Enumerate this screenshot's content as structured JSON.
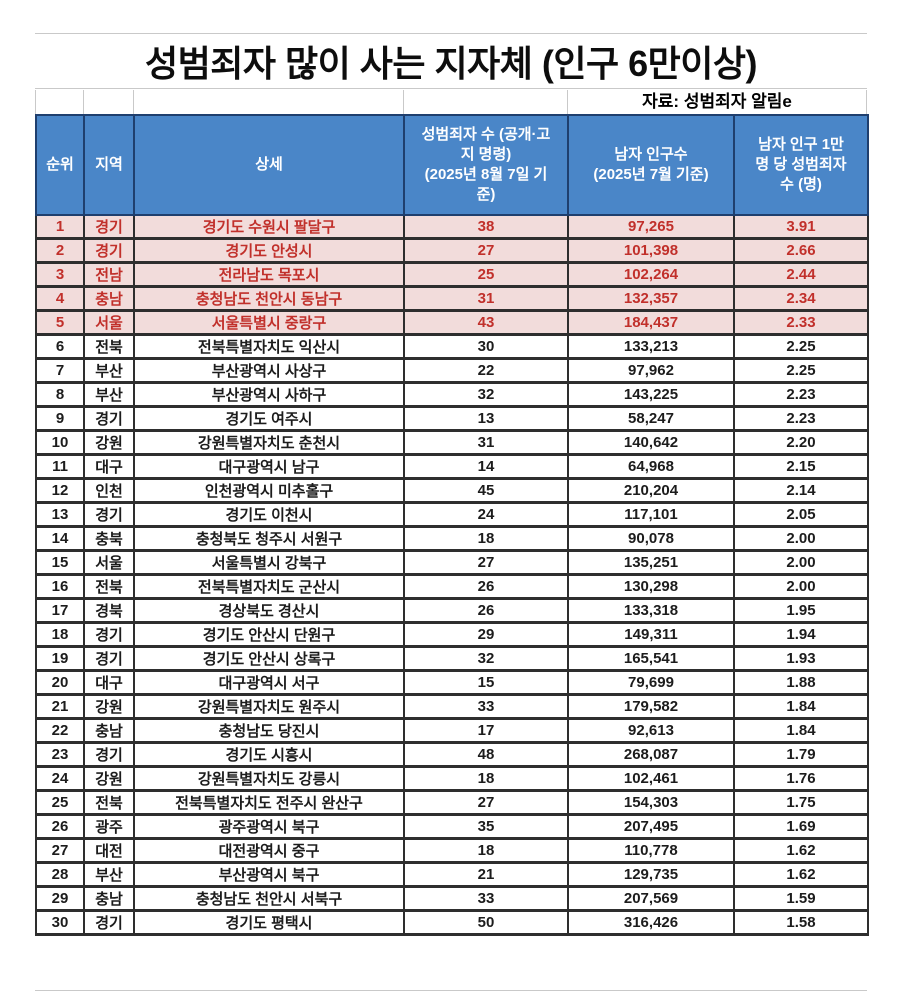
{
  "chart_data": {
    "type": "table",
    "title": "성범죄자 많이 사는 지자체 (인구 6만이상)",
    "source_note": "자료: 성범죄자 알림e",
    "columns": [
      "순위",
      "지역",
      "상세",
      "성범죄자 수 (공개·고\n지 명령)\n(2025년 8월 7일 기\n준)",
      "남자 인구수\n(2025년 7월 기준)",
      "남자 인구 1만\n명 당 성범죄자\n수 (명)"
    ],
    "highlight_rows": [
      1,
      2,
      3,
      4,
      5
    ],
    "rows": [
      [
        "1",
        "경기",
        "경기도 수원시 팔달구",
        "38",
        "97,265",
        "3.91"
      ],
      [
        "2",
        "경기",
        "경기도 안성시",
        "27",
        "101,398",
        "2.66"
      ],
      [
        "3",
        "전남",
        "전라남도 목포시",
        "25",
        "102,264",
        "2.44"
      ],
      [
        "4",
        "충남",
        "충청남도 천안시 동남구",
        "31",
        "132,357",
        "2.34"
      ],
      [
        "5",
        "서울",
        "서울특별시 중랑구",
        "43",
        "184,437",
        "2.33"
      ],
      [
        "6",
        "전북",
        "전북특별자치도 익산시",
        "30",
        "133,213",
        "2.25"
      ],
      [
        "7",
        "부산",
        "부산광역시 사상구",
        "22",
        "97,962",
        "2.25"
      ],
      [
        "8",
        "부산",
        "부산광역시 사하구",
        "32",
        "143,225",
        "2.23"
      ],
      [
        "9",
        "경기",
        "경기도 여주시",
        "13",
        "58,247",
        "2.23"
      ],
      [
        "10",
        "강원",
        "강원특별자치도 춘천시",
        "31",
        "140,642",
        "2.20"
      ],
      [
        "11",
        "대구",
        "대구광역시 남구",
        "14",
        "64,968",
        "2.15"
      ],
      [
        "12",
        "인천",
        "인천광역시 미추홀구",
        "45",
        "210,204",
        "2.14"
      ],
      [
        "13",
        "경기",
        "경기도 이천시",
        "24",
        "117,101",
        "2.05"
      ],
      [
        "14",
        "충북",
        "충청북도 청주시 서원구",
        "18",
        "90,078",
        "2.00"
      ],
      [
        "15",
        "서울",
        "서울특별시 강북구",
        "27",
        "135,251",
        "2.00"
      ],
      [
        "16",
        "전북",
        "전북특별자치도 군산시",
        "26",
        "130,298",
        "2.00"
      ],
      [
        "17",
        "경북",
        "경상북도 경산시",
        "26",
        "133,318",
        "1.95"
      ],
      [
        "18",
        "경기",
        "경기도 안산시 단원구",
        "29",
        "149,311",
        "1.94"
      ],
      [
        "19",
        "경기",
        "경기도 안산시 상록구",
        "32",
        "165,541",
        "1.93"
      ],
      [
        "20",
        "대구",
        "대구광역시 서구",
        "15",
        "79,699",
        "1.88"
      ],
      [
        "21",
        "강원",
        "강원특별자치도 원주시",
        "33",
        "179,582",
        "1.84"
      ],
      [
        "22",
        "충남",
        "충청남도 당진시",
        "17",
        "92,613",
        "1.84"
      ],
      [
        "23",
        "경기",
        "경기도 시흥시",
        "48",
        "268,087",
        "1.79"
      ],
      [
        "24",
        "강원",
        "강원특별자치도 강릉시",
        "18",
        "102,461",
        "1.76"
      ],
      [
        "25",
        "전북",
        "전북특별자치도 전주시 완산구",
        "27",
        "154,303",
        "1.75"
      ],
      [
        "26",
        "광주",
        "광주광역시 북구",
        "35",
        "207,495",
        "1.69"
      ],
      [
        "27",
        "대전",
        "대전광역시 중구",
        "18",
        "110,778",
        "1.62"
      ],
      [
        "28",
        "부산",
        "부산광역시 북구",
        "21",
        "129,735",
        "1.62"
      ],
      [
        "29",
        "충남",
        "충청남도 천안시 서북구",
        "33",
        "207,569",
        "1.59"
      ],
      [
        "30",
        "경기",
        "경기도 평택시",
        "50",
        "316,426",
        "1.58"
      ]
    ]
  },
  "colors": {
    "header_bg": "#4a86c8",
    "header_text": "#ffffff",
    "header_border": "#1f3f6e",
    "highlight_bg": "#f2dcdb",
    "highlight_text": "#c1302b",
    "row_text": "#1c1c1c",
    "border": "#2e2e2e",
    "gridline": "#c9c9c9",
    "title_text": "#0d0d0d"
  }
}
